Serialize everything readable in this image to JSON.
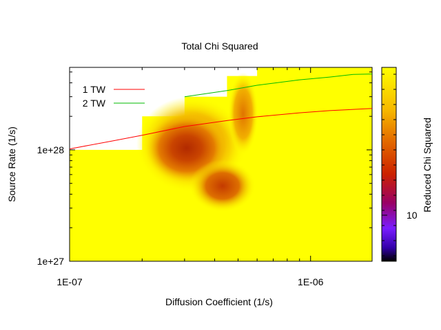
{
  "chart_data": {
    "type": "heatmap",
    "title": "Total Chi Squared",
    "xlabel": "Diffusion Coefficient (1/s)",
    "ylabel": "Source Rate (1/s)",
    "xscale": "log",
    "yscale": "log",
    "xlim": [
      1e-07,
      1.8e-06
    ],
    "ylim": [
      1e+27,
      5.5e+28
    ],
    "x_tick_labels": [
      {
        "value": 1e-07,
        "label": "1E-07"
      },
      {
        "value": 1e-06,
        "label": "1E-06"
      }
    ],
    "y_tick_labels": [
      {
        "value": 1e+27,
        "label": "1e+27"
      },
      {
        "value": 1e+28,
        "label": "1e+28"
      }
    ],
    "grid": false,
    "legend_position": "top-left",
    "series": [
      {
        "name": "1 TW",
        "color": "#ff0000",
        "points": [
          {
            "x": 1e-07,
            "y": 1.02e+28
          },
          {
            "x": 1.5e-07,
            "y": 1.2e+28
          },
          {
            "x": 2e-07,
            "y": 1.35e+28
          },
          {
            "x": 3e-07,
            "y": 1.62e+28
          },
          {
            "x": 4.5e-07,
            "y": 1.83e+28
          },
          {
            "x": 6e-07,
            "y": 1.98e+28
          },
          {
            "x": 9e-07,
            "y": 2.15e+28
          },
          {
            "x": 1.2e-06,
            "y": 2.25e+28
          },
          {
            "x": 1.8e-06,
            "y": 2.35e+28
          }
        ]
      },
      {
        "name": "2 TW",
        "color": "#00bb00",
        "points": [
          {
            "x": 3e-07,
            "y": 3e+28
          },
          {
            "x": 4.5e-07,
            "y": 3.4e+28
          },
          {
            "x": 6e-07,
            "y": 3.8e+28
          },
          {
            "x": 9e-07,
            "y": 4.25e+28
          },
          {
            "x": 1.2e-06,
            "y": 4.5e+28
          },
          {
            "x": 1.5e-06,
            "y": 4.75e+28
          },
          {
            "x": 1.8e-06,
            "y": 4.8e+28
          }
        ]
      }
    ],
    "heatmap": {
      "description_cells": [
        {
          "x_range": [
            1e-07,
            2e-07
          ],
          "y_range": [
            1e+27,
            1e+28
          ],
          "filled": true
        },
        {
          "x_range": [
            2e-07,
            3e-07
          ],
          "y_range": [
            1e+27,
            2e+28
          ],
          "filled": true
        },
        {
          "x_range": [
            3e-07,
            4.5e-07
          ],
          "y_range": [
            1e+27,
            3e+28
          ],
          "filled": true
        },
        {
          "x_range": [
            4.5e-07,
            6e-07
          ],
          "y_range": [
            1e+27,
            4.6e+28
          ],
          "filled": true
        },
        {
          "x_range": [
            6e-07,
            1.8e-06
          ],
          "y_range": [
            1e+27,
            5.5e+28
          ],
          "filled": true
        }
      ],
      "minimum_region": {
        "x": 3e-07,
        "y": 9e+27
      }
    },
    "colorbar": {
      "label": "Reduced Chi Squared",
      "ticks": [
        {
          "value": 10,
          "label": "10"
        }
      ],
      "colors": [
        "#ffff00",
        "#ffa500",
        "#cc3300",
        "#990066",
        "#7700ff",
        "#000000"
      ]
    }
  }
}
